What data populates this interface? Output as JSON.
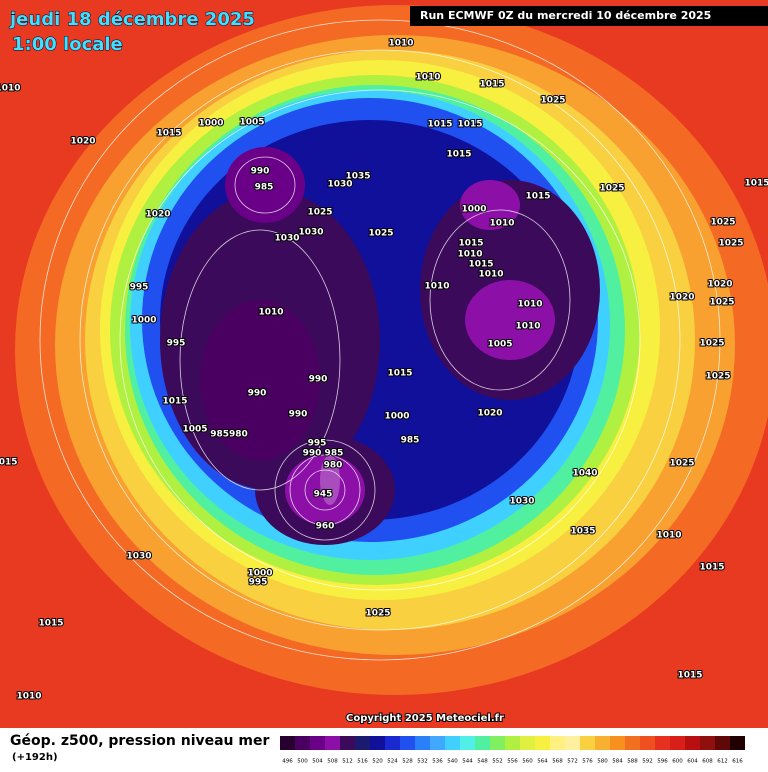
{
  "header": {
    "title": "jeudi 18 décembre 2025",
    "subtitle": "1:00 locale",
    "run": "Run ECMWF 0Z du mercredi 10 décembre 2025"
  },
  "footer": {
    "product": "Géop. z500, pression niveau mer",
    "lead": "(+192h)",
    "copyright": "Copyright 2025 Meteociel.fr"
  },
  "legend": {
    "values": [
      496,
      500,
      504,
      508,
      512,
      516,
      520,
      524,
      528,
      532,
      536,
      540,
      544,
      548,
      552,
      556,
      560,
      564,
      568,
      572,
      576,
      580,
      584,
      588,
      592,
      596,
      600,
      604,
      608,
      612,
      616
    ],
    "colors": [
      "#280030",
      "#4a0060",
      "#6a0088",
      "#8c10a8",
      "#3c0a5a",
      "#1a1a70",
      "#10109a",
      "#1a2ad0",
      "#2050f0",
      "#2a80f8",
      "#40a8ff",
      "#40d0ff",
      "#50f0e8",
      "#50f0a0",
      "#80f060",
      "#b0f040",
      "#e0f040",
      "#f8f040",
      "#fff080",
      "#fff0a0",
      "#f8d040",
      "#f8b030",
      "#f89020",
      "#f07020",
      "#f05020",
      "#e83020",
      "#d82018",
      "#b81010",
      "#901010",
      "#600808",
      "#200000"
    ]
  },
  "isobars": [
    "1010",
    "1010",
    "1015",
    "1025",
    "1015",
    "1015",
    "1015",
    "1010",
    "1020",
    "1015",
    "1000",
    "1005",
    "990",
    "985",
    "1035",
    "1030",
    "1020",
    "1025",
    "1030",
    "1030",
    "1025",
    "1000",
    "1010",
    "1015",
    "1025",
    "1015",
    "1010",
    "1015",
    "1010",
    "1010",
    "995",
    "1010",
    "1000",
    "1010",
    "1010",
    "1005",
    "995",
    "1015",
    "990",
    "990",
    "1015",
    "990",
    "1000",
    "1020",
    "985",
    "1005",
    "985980",
    "995",
    "990 985",
    "980",
    "945",
    "960",
    "1040",
    "1030",
    "1035",
    "1010",
    "1030",
    "1000",
    "995",
    "1025",
    "1015",
    "1010",
    "1015",
    "1025",
    "1015",
    "1025",
    "1025",
    "1020",
    "1020",
    "1025",
    "1025",
    "1025",
    "1015",
    "1015"
  ]
}
